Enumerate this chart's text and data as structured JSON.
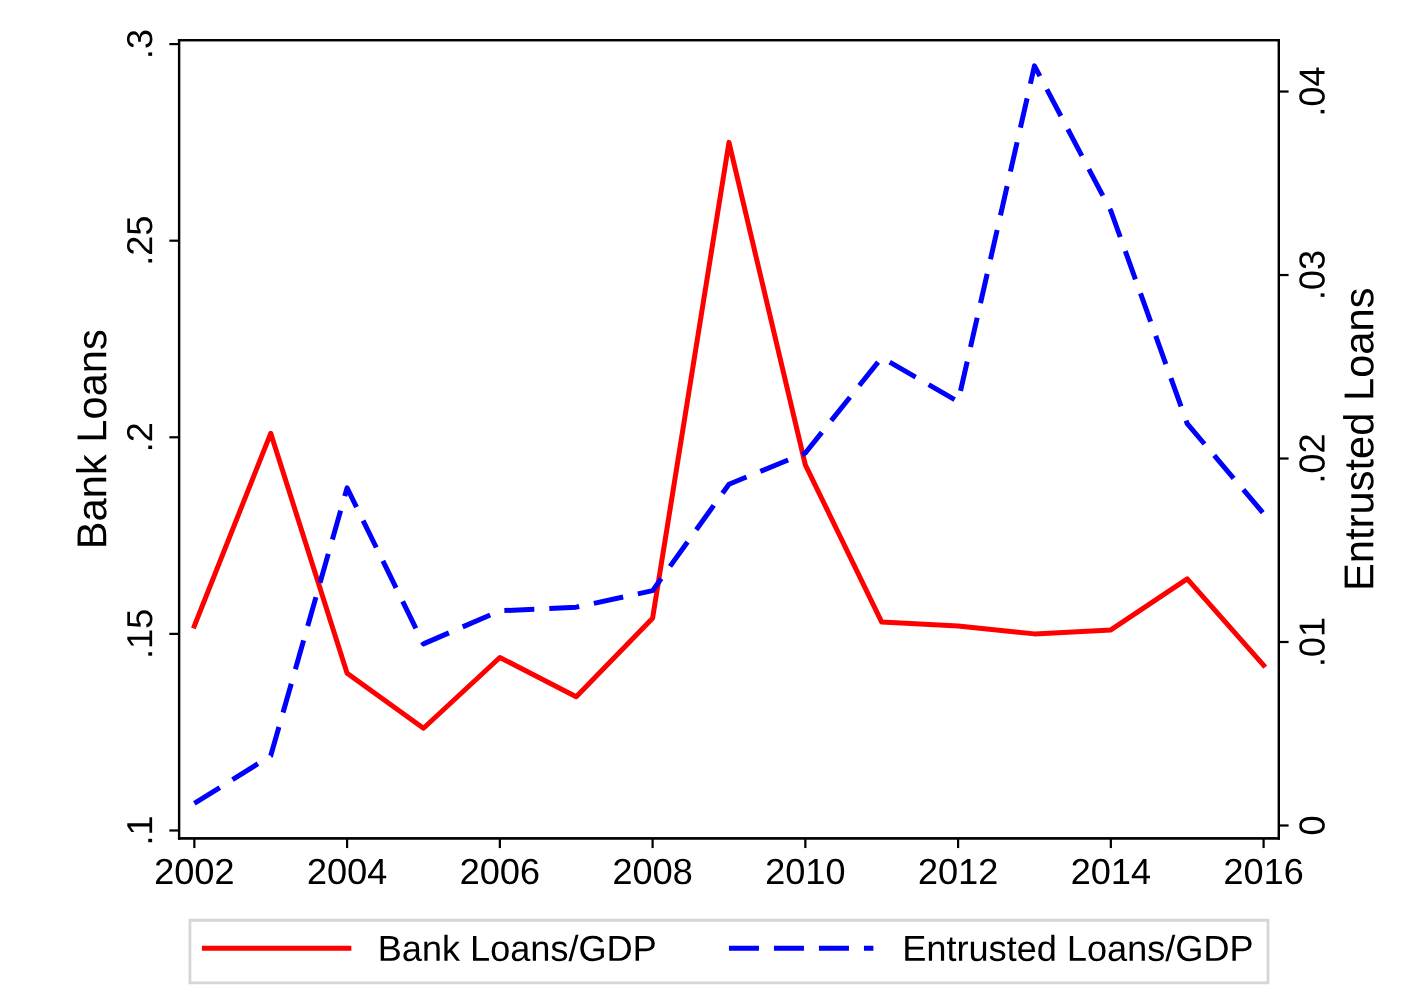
{
  "chart_data": {
    "type": "line",
    "ylabel": "Bank Loans",
    "y2label": "Entrusted Loans",
    "x": [
      2002,
      2003,
      2004,
      2005,
      2006,
      2007,
      2008,
      2009,
      2010,
      2011,
      2012,
      2013,
      2014,
      2015,
      2016
    ],
    "series": [
      {
        "name": "Bank Loans/GDP",
        "color": "#ff0000",
        "line_style": "solid",
        "values": [
          0.152,
          0.201,
          0.14,
          0.126,
          0.144,
          0.134,
          0.154,
          0.275,
          0.193,
          0.153,
          0.152,
          0.15,
          0.151,
          0.164,
          0.142
        ]
      },
      {
        "name": "Entrusted Loans/GDP",
        "color": "#0000ff",
        "line_style": "dashed",
        "axis": "y2",
        "values": [
          0.0012,
          0.0038,
          0.0184,
          0.0099,
          0.0117,
          0.0119,
          0.0128,
          0.0186,
          0.0203,
          0.0255,
          0.0231,
          0.0414,
          0.0335,
          0.0219,
          0.017
        ]
      }
    ],
    "xlim": [
      2001.8,
      2016.2
    ],
    "xticks": [
      2002,
      2004,
      2006,
      2008,
      2010,
      2012,
      2014,
      2016
    ],
    "ylim": [
      0.098,
      0.301
    ],
    "yticks": [
      {
        "value": 0.1,
        "label": ".1"
      },
      {
        "value": 0.15,
        "label": ".15"
      },
      {
        "value": 0.2,
        "label": ".2"
      },
      {
        "value": 0.25,
        "label": ".25"
      },
      {
        "value": 0.3,
        "label": ".3"
      }
    ],
    "y2lim": [
      -0.0007,
      0.0428
    ],
    "y2ticks": [
      0,
      {
        "value": 0.01,
        "label": ".01"
      },
      {
        "value": 0.02,
        "label": ".02"
      },
      {
        "value": 0.03,
        "label": ".03"
      },
      {
        "value": 0.04,
        "label": ".04"
      }
    ],
    "grid": false,
    "legend": "bottom",
    "marker": "none"
  }
}
